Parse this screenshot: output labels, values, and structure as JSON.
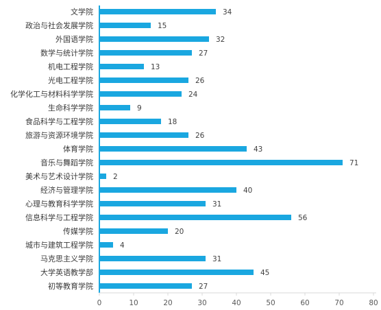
{
  "chart_data": {
    "type": "bar",
    "orientation": "horizontal",
    "categories": [
      "文学院",
      "政治与社会发展学院",
      "外国语学院",
      "数学与统计学院",
      "机电工程学院",
      "光电工程学院",
      "化学化工与材料科学学院",
      "生命科学学院",
      "食品科学与工程学院",
      "旅游与资源环境学院",
      "体育学院",
      "音乐与舞蹈学院",
      "美术与艺术设计学院",
      "经济与管理学院",
      "心理与教育科学学院",
      "信息科学与工程学院",
      "传媒学院",
      "城市与建筑工程学院",
      "马克思主义学院",
      "大学英语教学部",
      "初等教育学院"
    ],
    "values": [
      34,
      15,
      32,
      27,
      13,
      26,
      24,
      9,
      18,
      26,
      43,
      71,
      2,
      40,
      31,
      56,
      20,
      4,
      31,
      45,
      27
    ],
    "xlim": [
      0,
      80
    ],
    "xticks": [
      0,
      10,
      20,
      30,
      40,
      50,
      60,
      70,
      80
    ],
    "title": "",
    "xlabel": "",
    "ylabel": "",
    "grid": false,
    "legend": "none",
    "bar_color": "#1aa7e0",
    "axis_color": "#1aa7e0"
  }
}
